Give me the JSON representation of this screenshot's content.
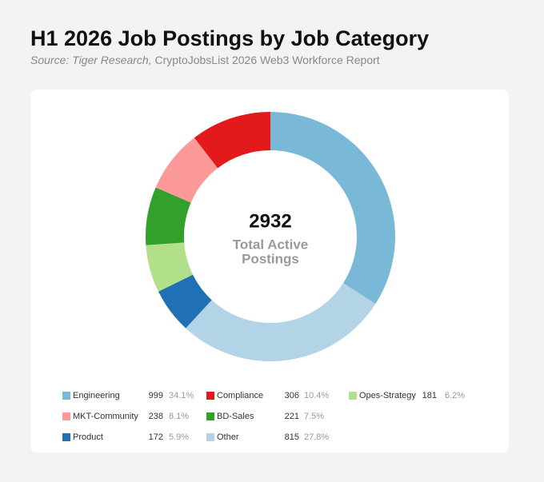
{
  "chart_data": {
    "type": "donut",
    "title": "H1 2026 Job Postings by Job Category",
    "source_prefix": "Source: Tiger Research,",
    "source": "CryptoJobsList 2026 Web3 Workforce Report",
    "total": 2932,
    "total_label": [
      "Total Active",
      "Postings"
    ],
    "categories": [
      "Engineering",
      "Other",
      "Product",
      "Opes-Strategy",
      "BD-Sales",
      "MKT-Community",
      "Compliance"
    ],
    "values": [
      999,
      815,
      172,
      181,
      221,
      238,
      306
    ],
    "shares": [
      "34.1%",
      "27.8%",
      "5.9%",
      "6.2%",
      "7.5%",
      "8.1%",
      "10.4%"
    ],
    "colors": [
      "#7ab8d8",
      "#b3d3e6",
      "#2070b4",
      "#b2df8a",
      "#33a02c",
      "#fb9a99",
      "#e31a1c"
    ]
  }
}
